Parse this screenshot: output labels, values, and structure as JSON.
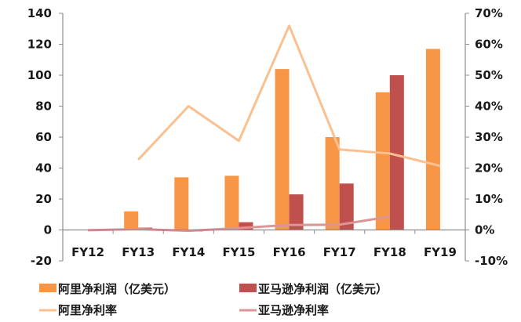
{
  "chart_data": {
    "type": "bar+line",
    "title": "",
    "categories": [
      "FY12",
      "FY13",
      "FY14",
      "FY15",
      "FY16",
      "FY17",
      "FY18",
      "FY19"
    ],
    "left_axis": {
      "ylim": [
        -20,
        140
      ],
      "ticks": [
        -20,
        0,
        20,
        40,
        60,
        80,
        100,
        120,
        140
      ],
      "tick_labels": [
        "-20",
        "0",
        "20",
        "40",
        "60",
        "80",
        "100",
        "120",
        "140"
      ]
    },
    "right_axis": {
      "ylim": [
        -10,
        70
      ],
      "ticks": [
        -10,
        0,
        10,
        20,
        30,
        40,
        50,
        60,
        70
      ],
      "tick_labels": [
        "-10%",
        "0%",
        "10%",
        "20%",
        "30%",
        "40%",
        "50%",
        "60%",
        "70%"
      ]
    },
    "series": [
      {
        "name": "阿里净利润（亿美元）",
        "type": "bar",
        "axis": "left",
        "color": "#F79646",
        "values": [
          null,
          12,
          34,
          35,
          104,
          60,
          89,
          117
        ]
      },
      {
        "name": "亚马逊净利润（亿美元）",
        "type": "bar",
        "axis": "left",
        "color": "#C0504D",
        "values": [
          0,
          1.5,
          -1,
          5,
          23,
          30,
          100,
          null
        ]
      },
      {
        "name": "阿里净利率",
        "type": "line",
        "axis": "right",
        "color": "#FAC090",
        "values": [
          null,
          22.7,
          40,
          28.8,
          66,
          26,
          24.7,
          20.7
        ]
      },
      {
        "name": "亚马逊净利率",
        "type": "line",
        "axis": "right",
        "color": "#D99694",
        "values": [
          -0.1,
          0.3,
          -0.3,
          0.6,
          1.6,
          1.7,
          4.3,
          null
        ]
      }
    ],
    "grid": false,
    "legend_position": "bottom"
  },
  "legend": {
    "ali_profit": "阿里净利润（亿美元）",
    "amazon_profit": "亚马逊净利润（亿美元）",
    "ali_margin": "阿里净利率",
    "amazon_margin": "亚马逊净利率"
  }
}
